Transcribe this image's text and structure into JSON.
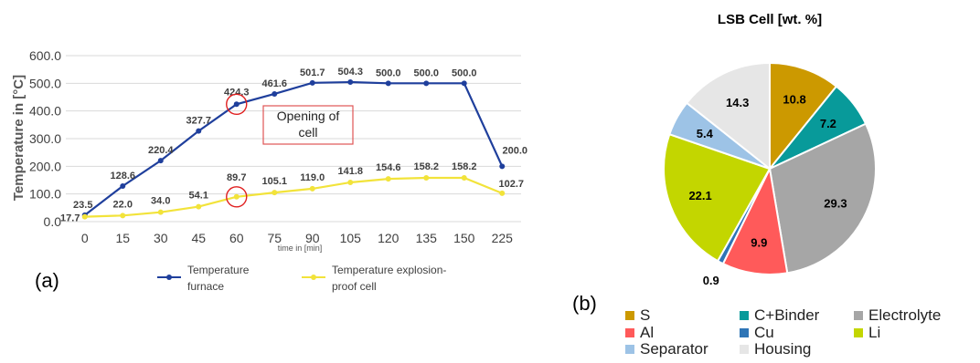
{
  "chart_data": [
    {
      "type": "line",
      "panel_label": "(a)",
      "categories": [
        "0",
        "15",
        "30",
        "45",
        "60",
        "75",
        "90",
        "105",
        "120",
        "135",
        "150",
        "225"
      ],
      "xlabel": "time in [min]",
      "ylabel": "Temperature in [°C]",
      "ylim": [
        0,
        600
      ],
      "yticks": [
        "0.0",
        "100.0",
        "200.0",
        "300.0",
        "400.0",
        "500.0",
        "600.0"
      ],
      "grid": true,
      "legend_position": "bottom",
      "series": [
        {
          "name": "Temperature furnace",
          "color": "#1f3f9c",
          "values": [
            23.5,
            128.6,
            220.4,
            327.7,
            424.3,
            461.6,
            501.7,
            504.3,
            500.0,
            500.0,
            500.0,
            200.0
          ],
          "labels": [
            "23.5",
            "128.6",
            "220.4",
            "327.7",
            "424.3",
            "461.6",
            "501.7",
            "504.3",
            "500.0",
            "500.0",
            "500.0",
            "200.0"
          ]
        },
        {
          "name": "Temperature explosion-proof cell",
          "color": "#f2e33a",
          "values": [
            17.7,
            22.0,
            34.0,
            54.1,
            89.7,
            105.1,
            119.0,
            141.8,
            154.6,
            158.2,
            158.2,
            102.7
          ],
          "labels": [
            "17.7",
            "22.0",
            "34.0",
            "54.1",
            "89.7",
            "105.1",
            "119.0",
            "141.8",
            "154.6",
            "158.2",
            "158.2",
            "102.7"
          ]
        }
      ],
      "legend": {
        "furnace": [
          "Temperature",
          "furnace"
        ],
        "cell": [
          "Temperature explosion-",
          "proof cell"
        ]
      },
      "annotation": [
        "Opening of",
        "cell"
      ],
      "highlight_x": "60"
    },
    {
      "type": "pie",
      "panel_label": "(b)",
      "title": "LSB Cell [wt. %]",
      "slices": [
        {
          "name": "S",
          "value": 10.8,
          "label": "10.8",
          "color": "#cc9900"
        },
        {
          "name": "C+Binder",
          "value": 7.2,
          "label": "7.2",
          "color": "#089a9a"
        },
        {
          "name": "Electrolyte",
          "value": 29.3,
          "label": "29.3",
          "color": "#a6a6a6"
        },
        {
          "name": "Al",
          "value": 9.9,
          "label": "9.9",
          "color": "#ff5a5a"
        },
        {
          "name": "Cu",
          "value": 0.9,
          "label": "0.9",
          "color": "#2e75b6"
        },
        {
          "name": "Li",
          "value": 22.1,
          "label": "22.1",
          "color": "#c3d600"
        },
        {
          "name": "Separator",
          "value": 5.4,
          "label": "5.4",
          "color": "#9dc3e6"
        },
        {
          "name": "Housing",
          "value": 14.3,
          "label": "14.3",
          "color": "#e6e6e6"
        }
      ],
      "legend_order": [
        "S",
        "C+Binder",
        "Electrolyte",
        "Al",
        "Cu",
        "Li",
        "Separator",
        "Housing"
      ]
    }
  ]
}
